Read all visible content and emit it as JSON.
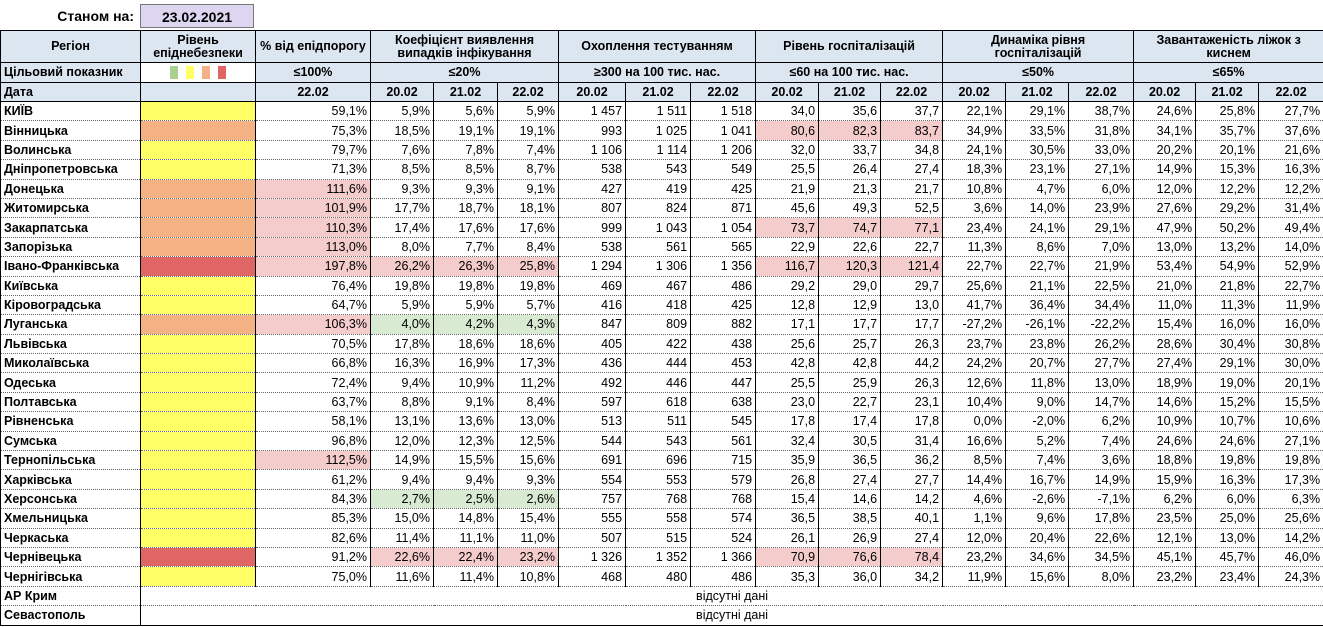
{
  "header": {
    "as_of_label": "Станом на:",
    "as_of_date": "23.02.2021"
  },
  "table": {
    "columns": [
      "Регіон",
      "Рівень епіднебезпеки",
      "% від епідпорогу",
      "Коефіцієнт виявлення випадків інфікування",
      "Охоплення тестуванням",
      "Рівень госпіталізацій",
      "Динаміка рівня госпіталізацій",
      "Завантаженість ліжок з киснем"
    ],
    "target_label": "Цільовий показник",
    "targets": [
      "≤100%",
      "≤20%",
      "≥300 на 100 тис. нас.",
      "≤60 на 100 тис. нас.",
      "≤50%",
      "≤65%"
    ],
    "date_label": "Дата",
    "dates": [
      "22.02",
      "20.02",
      "21.02",
      "22.02",
      "20.02",
      "21.02",
      "22.02",
      "20.02",
      "21.02",
      "22.02",
      "20.02",
      "21.02",
      "22.02",
      "20.02",
      "21.02",
      "22.02"
    ],
    "rows": [
      {
        "region": "КИЇВ",
        "level_color": "#ffff66",
        "values": [
          "59,1%",
          "5,9%",
          "5,6%",
          "5,9%",
          "1 457",
          "1 511",
          "1 518",
          "34,0",
          "35,6",
          "37,7",
          "22,1%",
          "29,1%",
          "38,7%",
          "24,6%",
          "25,8%",
          "27,7%"
        ]
      },
      {
        "region": "Вінницька",
        "level_color": "#f4b183",
        "hosp_fill": "#f4cccc",
        "values": [
          "75,3%",
          "18,5%",
          "19,1%",
          "19,1%",
          "993",
          "1 025",
          "1 041",
          "80,6",
          "82,3",
          "83,7",
          "34,9%",
          "33,5%",
          "31,8%",
          "34,1%",
          "35,7%",
          "37,6%"
        ]
      },
      {
        "region": "Волинська",
        "level_color": "#ffff66",
        "values": [
          "79,7%",
          "7,6%",
          "7,8%",
          "7,4%",
          "1 106",
          "1 114",
          "1 206",
          "32,0",
          "33,7",
          "34,8",
          "24,1%",
          "30,5%",
          "33,0%",
          "20,2%",
          "20,1%",
          "21,6%"
        ]
      },
      {
        "region": "Дніпропетровська",
        "level_color": "#ffff66",
        "values": [
          "71,3%",
          "8,5%",
          "8,5%",
          "8,7%",
          "538",
          "543",
          "549",
          "25,5",
          "26,4",
          "27,4",
          "18,3%",
          "23,1%",
          "27,1%",
          "14,9%",
          "15,3%",
          "16,3%"
        ]
      },
      {
        "region": "Донецька",
        "level_color": "#f4b183",
        "pct_fill": "#f4cccc",
        "values": [
          "111,6%",
          "9,3%",
          "9,3%",
          "9,1%",
          "427",
          "419",
          "425",
          "21,9",
          "21,3",
          "21,7",
          "10,8%",
          "4,7%",
          "6,0%",
          "12,0%",
          "12,2%",
          "12,2%"
        ]
      },
      {
        "region": "Житомирська",
        "level_color": "#f4b183",
        "pct_fill": "#f4cccc",
        "values": [
          "101,9%",
          "17,7%",
          "18,7%",
          "18,1%",
          "807",
          "824",
          "871",
          "45,6",
          "49,3",
          "52,5",
          "3,6%",
          "14,0%",
          "23,9%",
          "27,6%",
          "29,2%",
          "31,4%"
        ]
      },
      {
        "region": "Закарпатська",
        "level_color": "#f4b183",
        "pct_fill": "#f4cccc",
        "hosp_fill": "#f4cccc",
        "values": [
          "110,3%",
          "17,4%",
          "17,6%",
          "17,6%",
          "999",
          "1 043",
          "1 054",
          "73,7",
          "74,7",
          "77,1",
          "23,4%",
          "24,1%",
          "29,1%",
          "47,9%",
          "50,2%",
          "49,4%"
        ]
      },
      {
        "region": "Запорізька",
        "level_color": "#f4b183",
        "pct_fill": "#f4cccc",
        "values": [
          "113,0%",
          "8,0%",
          "7,7%",
          "8,4%",
          "538",
          "561",
          "565",
          "22,9",
          "22,6",
          "22,7",
          "11,3%",
          "8,6%",
          "7,0%",
          "13,0%",
          "13,2%",
          "14,0%"
        ]
      },
      {
        "region": "Івано-Франківська",
        "level_color": "#e06666",
        "pct_fill": "#f4cccc",
        "coef_fill": "#f4cccc",
        "hosp_fill": "#f4cccc",
        "values": [
          "197,8%",
          "26,2%",
          "26,3%",
          "25,8%",
          "1 294",
          "1 306",
          "1 356",
          "116,7",
          "120,3",
          "121,4",
          "22,7%",
          "22,7%",
          "21,9%",
          "53,4%",
          "54,9%",
          "52,9%"
        ]
      },
      {
        "region": "Київська",
        "level_color": "#ffff66",
        "values": [
          "76,4%",
          "19,8%",
          "19,8%",
          "19,8%",
          "469",
          "467",
          "486",
          "29,2",
          "29,0",
          "29,7",
          "25,6%",
          "21,1%",
          "22,5%",
          "21,0%",
          "21,8%",
          "22,7%"
        ]
      },
      {
        "region": "Кіровоградська",
        "level_color": "#ffff66",
        "values": [
          "64,7%",
          "5,9%",
          "5,9%",
          "5,7%",
          "416",
          "418",
          "425",
          "12,8",
          "12,9",
          "13,0",
          "41,7%",
          "36,4%",
          "34,4%",
          "11,0%",
          "11,3%",
          "11,9%"
        ]
      },
      {
        "region": "Луганська",
        "level_color": "#f4b183",
        "pct_fill": "#f4cccc",
        "coef_fill": "#d9ead3",
        "values": [
          "106,3%",
          "4,0%",
          "4,2%",
          "4,3%",
          "847",
          "809",
          "882",
          "17,1",
          "17,7",
          "17,7",
          "-27,2%",
          "-26,1%",
          "-22,2%",
          "15,4%",
          "16,0%",
          "16,0%"
        ]
      },
      {
        "region": "Львівська",
        "level_color": "#ffff66",
        "values": [
          "70,5%",
          "17,8%",
          "18,6%",
          "18,6%",
          "405",
          "422",
          "438",
          "25,6",
          "25,7",
          "26,3",
          "23,7%",
          "23,8%",
          "26,2%",
          "28,6%",
          "30,4%",
          "30,8%"
        ]
      },
      {
        "region": "Миколаївська",
        "level_color": "#ffff66",
        "values": [
          "66,8%",
          "16,3%",
          "16,9%",
          "17,3%",
          "436",
          "444",
          "453",
          "42,8",
          "42,8",
          "44,2",
          "24,2%",
          "20,7%",
          "27,7%",
          "27,4%",
          "29,1%",
          "30,0%"
        ]
      },
      {
        "region": "Одеська",
        "level_color": "#ffff66",
        "values": [
          "72,4%",
          "9,4%",
          "10,9%",
          "11,2%",
          "492",
          "446",
          "447",
          "25,5",
          "25,9",
          "26,3",
          "12,6%",
          "11,8%",
          "13,0%",
          "18,9%",
          "19,0%",
          "20,1%"
        ]
      },
      {
        "region": "Полтавська",
        "level_color": "#ffff66",
        "values": [
          "63,7%",
          "8,8%",
          "9,1%",
          "8,4%",
          "597",
          "618",
          "638",
          "23,0",
          "22,7",
          "23,1",
          "10,4%",
          "9,0%",
          "14,7%",
          "14,6%",
          "15,2%",
          "15,5%"
        ]
      },
      {
        "region": "Рівненська",
        "level_color": "#ffff66",
        "values": [
          "58,1%",
          "13,1%",
          "13,6%",
          "13,0%",
          "513",
          "511",
          "545",
          "17,8",
          "17,4",
          "17,8",
          "0,0%",
          "-2,0%",
          "6,2%",
          "10,9%",
          "10,7%",
          "10,6%"
        ]
      },
      {
        "region": "Сумська",
        "level_color": "#ffff66",
        "values": [
          "96,8%",
          "12,0%",
          "12,3%",
          "12,5%",
          "544",
          "543",
          "561",
          "32,4",
          "30,5",
          "31,4",
          "16,6%",
          "5,2%",
          "7,4%",
          "24,6%",
          "24,6%",
          "27,1%"
        ]
      },
      {
        "region": "Тернопільська",
        "level_color": "#ffff66",
        "pct_fill": "#f4cccc",
        "values": [
          "112,5%",
          "14,9%",
          "15,5%",
          "15,6%",
          "691",
          "696",
          "715",
          "35,9",
          "36,5",
          "36,2",
          "8,5%",
          "7,4%",
          "3,6%",
          "18,8%",
          "19,8%",
          "19,8%"
        ]
      },
      {
        "region": "Харківська",
        "level_color": "#ffff66",
        "values": [
          "61,2%",
          "9,4%",
          "9,4%",
          "9,3%",
          "554",
          "553",
          "579",
          "26,8",
          "27,4",
          "27,7",
          "14,4%",
          "16,7%",
          "14,9%",
          "15,9%",
          "16,3%",
          "17,3%"
        ]
      },
      {
        "region": "Херсонська",
        "level_color": "#ffff66",
        "coef_fill": "#d9ead3",
        "values": [
          "84,3%",
          "2,7%",
          "2,5%",
          "2,6%",
          "757",
          "768",
          "768",
          "15,4",
          "14,6",
          "14,2",
          "4,6%",
          "-2,6%",
          "-7,1%",
          "6,2%",
          "6,0%",
          "6,3%"
        ]
      },
      {
        "region": "Хмельницька",
        "level_color": "#ffff66",
        "values": [
          "85,3%",
          "15,0%",
          "14,8%",
          "15,4%",
          "555",
          "558",
          "574",
          "36,5",
          "38,5",
          "40,1",
          "1,1%",
          "9,6%",
          "17,8%",
          "23,5%",
          "25,0%",
          "25,6%"
        ]
      },
      {
        "region": "Черкаська",
        "level_color": "#ffff66",
        "values": [
          "82,6%",
          "11,4%",
          "11,1%",
          "11,0%",
          "507",
          "515",
          "524",
          "26,1",
          "26,9",
          "27,4",
          "12,0%",
          "20,4%",
          "22,6%",
          "12,1%",
          "13,0%",
          "14,2%"
        ]
      },
      {
        "region": "Чернівецька",
        "level_color": "#e06666",
        "coef_fill": "#f4cccc",
        "hosp_fill": "#f4cccc",
        "values": [
          "91,2%",
          "22,6%",
          "22,4%",
          "23,2%",
          "1 326",
          "1 352",
          "1 366",
          "70,9",
          "76,6",
          "78,4",
          "23,2%",
          "34,6%",
          "34,5%",
          "45,1%",
          "45,7%",
          "46,0%"
        ]
      },
      {
        "region": "Чернігівська",
        "level_color": "#ffff66",
        "values": [
          "75,0%",
          "11,6%",
          "11,4%",
          "10,8%",
          "468",
          "480",
          "486",
          "35,3",
          "36,0",
          "34,2",
          "11,9%",
          "15,6%",
          "8,0%",
          "23,2%",
          "23,4%",
          "24,3%"
        ]
      }
    ],
    "missing_rows": [
      {
        "region": "АР Крим",
        "note": "відсутні дані"
      },
      {
        "region": "Севастополь",
        "note": "відсутні дані"
      }
    ]
  }
}
